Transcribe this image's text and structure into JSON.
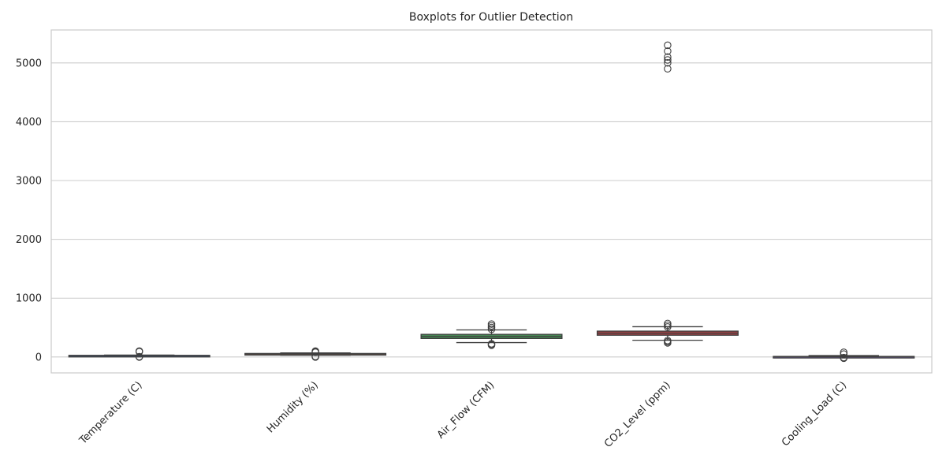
{
  "chart_data": {
    "type": "boxplot",
    "title": "Boxplots for Outlier Detection",
    "xlabel": "",
    "ylabel": "",
    "ylim": [
      -270,
      5560
    ],
    "yticks": [
      0,
      1000,
      2000,
      3000,
      4000,
      5000
    ],
    "grid": true,
    "categories": [
      "Temperature (C)",
      "Humidity (%)",
      "Air_Flow (CFM)",
      "CO2_Level (ppm)",
      "Cooling_Load (C)"
    ],
    "colors": [
      "#4c72b0",
      "#dd8452",
      "#55a868",
      "#c44e52",
      "#8172b3"
    ],
    "series": [
      {
        "category": "Temperature (C)",
        "whisker_low": 15,
        "q1": 20,
        "median": 24,
        "q3": 28,
        "whisker_high": 33,
        "outliers": [
          0,
          5,
          90,
          100
        ]
      },
      {
        "category": "Humidity (%)",
        "whisker_low": 30,
        "q1": 40,
        "median": 50,
        "q3": 60,
        "whisker_high": 70,
        "outliers": [
          0,
          5,
          10,
          80,
          90,
          100
        ]
      },
      {
        "category": "Air_Flow (CFM)",
        "whisker_low": 245,
        "q1": 315,
        "median": 350,
        "q3": 385,
        "whisker_high": 460,
        "outliers": [
          200,
          210,
          225,
          470,
          500,
          530,
          560
        ]
      },
      {
        "category": "CO2_Level (ppm)",
        "whisker_low": 285,
        "q1": 370,
        "median": 405,
        "q3": 440,
        "whisker_high": 515,
        "outliers": [
          240,
          260,
          280,
          510,
          540,
          570,
          4900,
          5000,
          5050,
          5100,
          5200,
          5300
        ]
      },
      {
        "category": "Cooling_Load (C)",
        "whisker_low": -10,
        "q1": 0,
        "median": 5,
        "q3": 10,
        "whisker_high": 25,
        "outliers": [
          -20,
          -10,
          50,
          80
        ]
      }
    ]
  }
}
